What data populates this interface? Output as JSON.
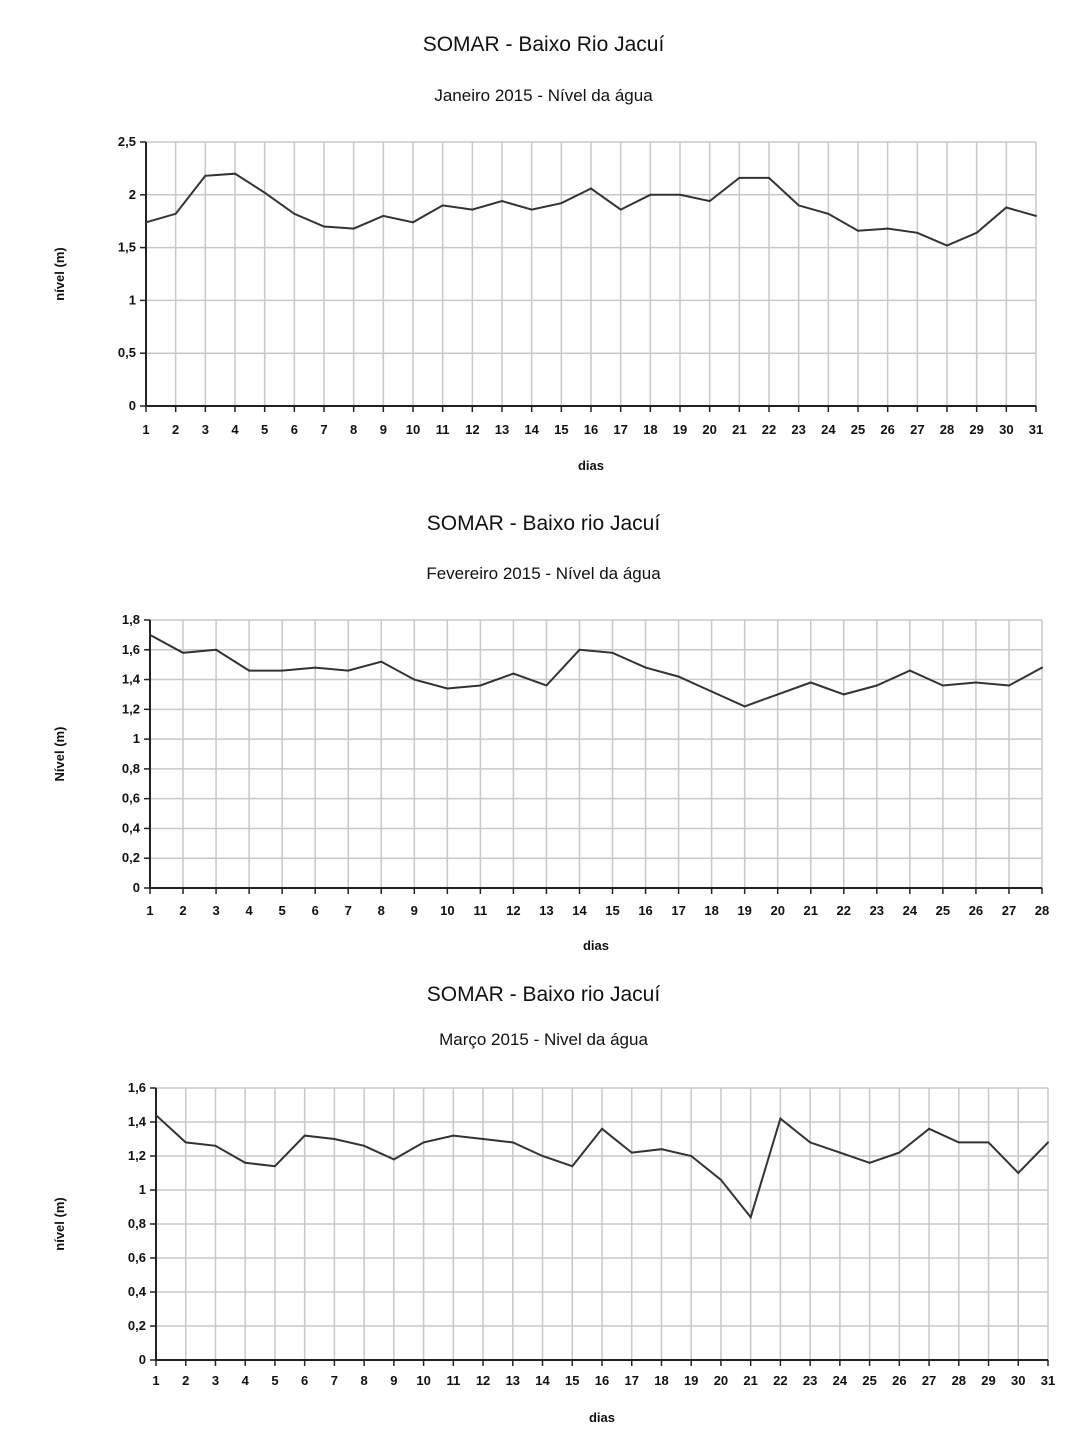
{
  "chart_data": [
    {
      "type": "line",
      "title": "SOMAR - Baixo Rio Jacuí",
      "subtitle": "Janeiro 2015 - Nível da água",
      "xlabel": "dias",
      "ylabel": "nível (m)",
      "categories": [
        "1",
        "2",
        "3",
        "4",
        "5",
        "6",
        "7",
        "8",
        "9",
        "10",
        "11",
        "12",
        "13",
        "14",
        "15",
        "16",
        "17",
        "18",
        "19",
        "20",
        "21",
        "22",
        "23",
        "24",
        "25",
        "26",
        "27",
        "28",
        "29",
        "30",
        "31"
      ],
      "values": [
        1.74,
        1.82,
        2.18,
        2.2,
        2.02,
        1.82,
        1.7,
        1.68,
        1.8,
        1.74,
        1.9,
        1.86,
        1.94,
        1.86,
        1.92,
        2.06,
        1.86,
        2.0,
        2.0,
        1.94,
        2.16,
        2.16,
        1.9,
        1.82,
        1.66,
        1.68,
        1.64,
        1.52,
        1.64,
        1.88,
        1.8
      ],
      "ylim": [
        0,
        2.5
      ],
      "yticks": [
        "0",
        "0,5",
        "1",
        "1,5",
        "2",
        "2,5"
      ],
      "grid": true,
      "line_color": "#333333"
    },
    {
      "type": "line",
      "title": "SOMAR - Baixo rio Jacuí",
      "subtitle": "Fevereiro 2015 - Nível da água",
      "xlabel": "dias",
      "ylabel": "Nível (m)",
      "categories": [
        "1",
        "2",
        "3",
        "4",
        "5",
        "6",
        "7",
        "8",
        "9",
        "10",
        "11",
        "12",
        "13",
        "14",
        "15",
        "16",
        "17",
        "18",
        "19",
        "20",
        "21",
        "22",
        "23",
        "24",
        "25",
        "26",
        "27",
        "28"
      ],
      "values": [
        1.7,
        1.58,
        1.6,
        1.46,
        1.46,
        1.48,
        1.46,
        1.52,
        1.4,
        1.34,
        1.36,
        1.44,
        1.36,
        1.6,
        1.58,
        1.48,
        1.42,
        1.32,
        1.22,
        1.3,
        1.38,
        1.3,
        1.36,
        1.46,
        1.36,
        1.38,
        1.36,
        1.48
      ],
      "ylim": [
        0,
        1.8
      ],
      "yticks": [
        "0",
        "0,2",
        "0,4",
        "0,6",
        "0,8",
        "1",
        "1,2",
        "1,4",
        "1,6",
        "1,8"
      ],
      "grid": true,
      "line_color": "#333333"
    },
    {
      "type": "line",
      "title": "SOMAR - Baixo rio Jacuí",
      "subtitle": "Março 2015 - Nivel da água",
      "xlabel": "dias",
      "ylabel": "nível (m)",
      "categories": [
        "1",
        "2",
        "3",
        "4",
        "5",
        "6",
        "7",
        "8",
        "9",
        "10",
        "11",
        "12",
        "13",
        "14",
        "15",
        "16",
        "17",
        "18",
        "19",
        "20",
        "21",
        "22",
        "23",
        "24",
        "25",
        "26",
        "27",
        "28",
        "29",
        "30",
        "31"
      ],
      "values": [
        1.44,
        1.28,
        1.26,
        1.16,
        1.14,
        1.32,
        1.3,
        1.26,
        1.18,
        1.28,
        1.32,
        1.3,
        1.28,
        1.2,
        1.14,
        1.36,
        1.22,
        1.24,
        1.2,
        1.06,
        0.84,
        1.42,
        1.28,
        1.22,
        1.16,
        1.22,
        1.36,
        1.28,
        1.28,
        1.1,
        1.28
      ],
      "ylim": [
        0,
        1.6
      ],
      "yticks": [
        "0",
        "0,2",
        "0,4",
        "0,6",
        "0,8",
        "1",
        "1,2",
        "1,4",
        "1,6"
      ],
      "grid": true,
      "line_color": "#333333"
    }
  ]
}
